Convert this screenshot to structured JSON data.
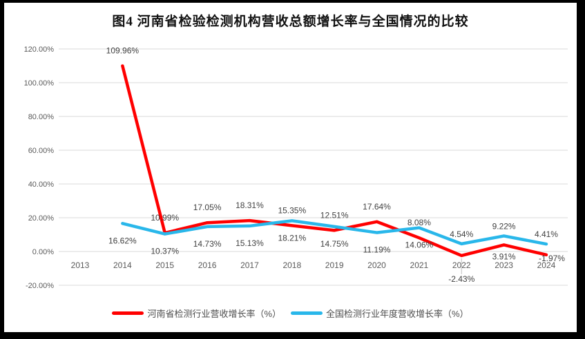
{
  "title": "图4  河南省检验检测机构营收总额增长率与全国情况的比较",
  "colors": {
    "henan_line": "#FF0000",
    "national_line": "#29B7EA",
    "gridline": "#D9D9D9",
    "leader_line": "#BFBFBF",
    "axis_text": "#595959",
    "data_label_text": "#404040"
  },
  "chart_data": {
    "type": "line",
    "x": [
      "2013",
      "2014",
      "2015",
      "2016",
      "2017",
      "2018",
      "2019",
      "2020",
      "2021",
      "2022",
      "2023",
      "2024"
    ],
    "series": [
      {
        "name": "河南省检测行业营收增长率（%）",
        "color": "#FF0000",
        "values": [
          null,
          109.96,
          10.99,
          17.05,
          18.31,
          15.35,
          12.51,
          17.64,
          8.08,
          -2.43,
          3.91,
          -1.97
        ],
        "labels": [
          "",
          "109.96%",
          "10.99%",
          "17.05%",
          "18.31%",
          "15.35%",
          "12.51%",
          "17.64%",
          "8.08%",
          "-2.43%",
          "3.91%",
          "-1.97%"
        ],
        "label_positions": [
          "",
          "above",
          "above",
          "above",
          "above",
          "above",
          "above",
          "above",
          "above",
          "below-far",
          "below-mid",
          "right"
        ]
      },
      {
        "name": "全国检测行业年度营收增长率（%）",
        "color": "#29B7EA",
        "values": [
          null,
          16.62,
          10.37,
          14.73,
          15.13,
          18.21,
          14.75,
          11.19,
          14.06,
          4.54,
          9.22,
          4.41
        ],
        "labels": [
          "",
          "16.62%",
          "10.37%",
          "14.73%",
          "15.13%",
          "18.21%",
          "14.75%",
          "11.19%",
          "14.06%",
          "4.54%",
          "9.22%",
          "4.41%"
        ],
        "label_positions": [
          "",
          "below",
          "below",
          "below",
          "below",
          "below",
          "below",
          "below",
          "below",
          "above-near",
          "above-near",
          "above-near"
        ]
      }
    ],
    "yticks": [
      {
        "label": "120.00%",
        "value": 120
      },
      {
        "label": "100.00%",
        "value": 100
      },
      {
        "label": "80.00%",
        "value": 80
      },
      {
        "label": "60.00%",
        "value": 60
      },
      {
        "label": "40.00%",
        "value": 40
      },
      {
        "label": "20.00%",
        "value": 20
      },
      {
        "label": "0.00%",
        "value": 0
      },
      {
        "label": "-20.00%",
        "value": -20
      }
    ],
    "ylim": [
      -20,
      120
    ],
    "grid": "horizontal",
    "legend_position": "bottom"
  }
}
